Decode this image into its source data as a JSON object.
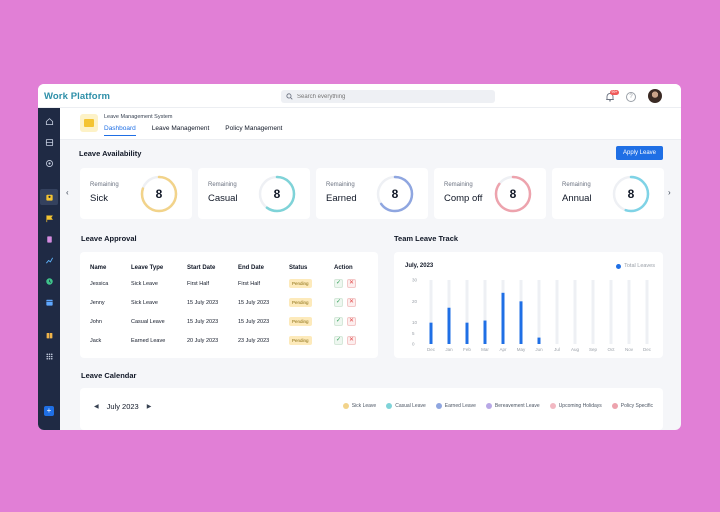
{
  "app": {
    "brand": "Work Platform"
  },
  "search": {
    "placeholder": "Search everything"
  },
  "notifications": {
    "badge": "99+"
  },
  "help": {
    "symbol": "?"
  },
  "module": {
    "title": "Leave Management System",
    "nav": [
      {
        "label": "Dashboard",
        "active": true
      },
      {
        "label": "Leave Management",
        "active": false
      },
      {
        "label": "Policy Management",
        "active": false
      }
    ]
  },
  "availability": {
    "title": "Leave Availability",
    "apply_label": "Apply Leave",
    "cards": [
      {
        "remaining_label": "Remaining",
        "type": "Sick",
        "count": "8",
        "color": "#f2d38a",
        "fraction": 0.8
      },
      {
        "remaining_label": "Remaining",
        "type": "Casual",
        "count": "8",
        "color": "#7fd3d8",
        "fraction": 0.6
      },
      {
        "remaining_label": "Remaining",
        "type": "Earned",
        "count": "8",
        "color": "#8fa6e0",
        "fraction": 0.65
      },
      {
        "remaining_label": "Remaining",
        "type": "Comp off",
        "count": "8",
        "color": "#eda3ad",
        "fraction": 0.85
      },
      {
        "remaining_label": "Remaining",
        "type": "Annual",
        "count": "8",
        "color": "#7fd3e6",
        "fraction": 0.55
      }
    ]
  },
  "approval": {
    "title": "Leave Approval",
    "columns": [
      "Name",
      "Leave Type",
      "Start Date",
      "End Date",
      "Status",
      "Action"
    ],
    "rows": [
      {
        "name": "Jessica",
        "type": "Sick Leave",
        "start": "First Half",
        "end": "First Half",
        "status": "Pending"
      },
      {
        "name": "Jenny",
        "type": "Sick Leave",
        "start": "15 July 2023",
        "end": "15 July 2023",
        "status": "Pending"
      },
      {
        "name": "John",
        "type": "Casual Leave",
        "start": "15 July 2023",
        "end": "15 July 2023",
        "status": "Pending"
      },
      {
        "name": "Jack",
        "type": "Earned Leave",
        "start": "20 July 2023",
        "end": "23 July 2023",
        "status": "Pending"
      }
    ],
    "approve_symbol": "✓",
    "reject_symbol": "✕"
  },
  "track": {
    "title": "Team Leave Track",
    "period": "July, 2023",
    "legend": "Total Leaves",
    "chart_data": {
      "type": "bar",
      "categories": [
        "Dec",
        "Jan",
        "Feb",
        "Mar",
        "Apr",
        "May",
        "Jun",
        "Jul",
        "Aug",
        "Sep",
        "Oct",
        "Nov",
        "Dec"
      ],
      "series": [
        {
          "name": "Total Leaves",
          "values": [
            10,
            17,
            10,
            11,
            24,
            20,
            3,
            0,
            0,
            0,
            0,
            0,
            0
          ]
        }
      ],
      "ylim": [
        0,
        30
      ],
      "yticks": [
        "0",
        "5",
        "10",
        "20",
        "30"
      ],
      "ytick_values": [
        0,
        5,
        10,
        20,
        30
      ],
      "color": "#1f6fe5"
    }
  },
  "calendar": {
    "title": "Leave Calendar",
    "month": "July 2023",
    "legend": [
      {
        "label": "Sick Leave",
        "color": "#f2d38a"
      },
      {
        "label": "Casual Leave",
        "color": "#7fd3d8"
      },
      {
        "label": "Earned Leave",
        "color": "#8fa6e0"
      },
      {
        "label": "Bereavement Leave",
        "color": "#b8a8e6"
      },
      {
        "label": "Upcoming Holidays",
        "color": "#f2b8c2"
      },
      {
        "label": "Policy Specific",
        "color": "#eda3ad"
      }
    ]
  }
}
